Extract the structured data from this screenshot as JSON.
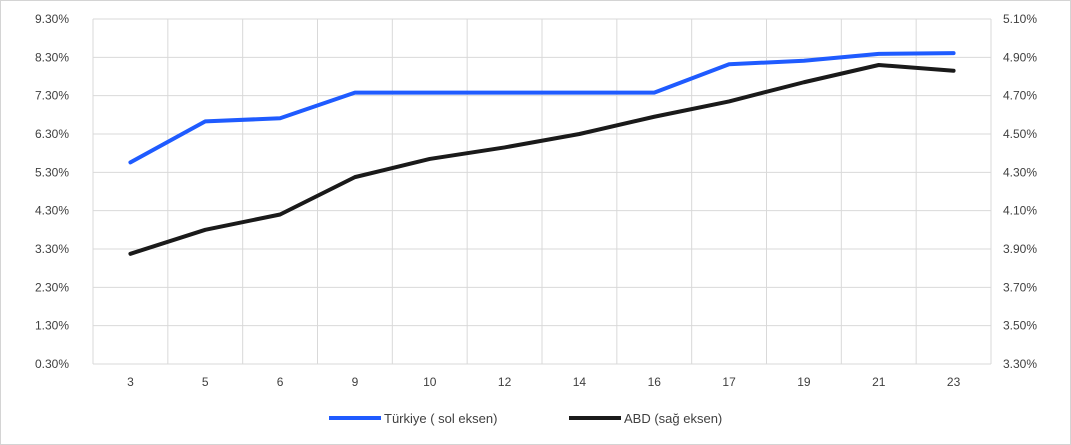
{
  "chart_data": {
    "type": "line",
    "categories": [
      "3",
      "5",
      "6",
      "9",
      "10",
      "12",
      "14",
      "16",
      "17",
      "19",
      "21",
      "23"
    ],
    "left_axis": {
      "ticks": [
        "0.30%",
        "1.30%",
        "2.30%",
        "3.30%",
        "4.30%",
        "5.30%",
        "6.30%",
        "7.30%",
        "8.30%",
        "9.30%"
      ],
      "ylim": [
        0.3,
        9.3
      ]
    },
    "right_axis": {
      "ticks": [
        "3.30%",
        "3.50%",
        "3.70%",
        "3.90%",
        "4.10%",
        "4.30%",
        "4.50%",
        "4.70%",
        "4.90%",
        "5.10%"
      ],
      "ylim": [
        3.3,
        5.1
      ]
    },
    "series": [
      {
        "name": "Türkiye ( sol eksen)",
        "axis": "left",
        "color": "#1f5bff",
        "values": [
          5.56,
          6.63,
          6.71,
          7.38,
          7.38,
          7.38,
          7.38,
          7.38,
          8.12,
          8.21,
          8.39,
          8.41
        ]
      },
      {
        "name": "ABD (sağ eksen)",
        "axis": "right",
        "color": "#1a1a1a",
        "values": [
          3.875,
          4.0,
          4.08,
          4.275,
          4.37,
          4.43,
          4.5,
          4.59,
          4.67,
          4.77,
          4.86,
          4.83
        ]
      }
    ],
    "grid": true,
    "legend_position": "bottom"
  }
}
